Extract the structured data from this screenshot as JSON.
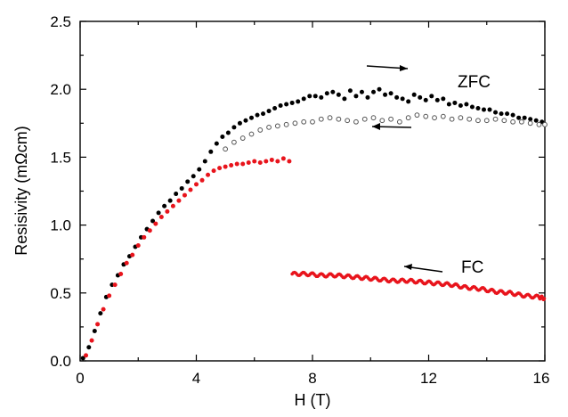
{
  "chart_data": {
    "type": "scatter",
    "title": "",
    "xlabel": "H (T)",
    "ylabel": "Resisivity (mΩcm)",
    "xlim": [
      0,
      16
    ],
    "ylim": [
      0,
      2.5
    ],
    "xticks": [
      "0",
      "4",
      "8",
      "12",
      "16"
    ],
    "yticks": [
      "0.0",
      "0.5",
      "1.0",
      "1.5",
      "2.0",
      "2.5"
    ],
    "grid": false,
    "annotations": [
      "ZFC",
      "FC"
    ],
    "colors": {
      "black": "#000000",
      "red": "#e8141c",
      "open": "#555555"
    },
    "series": [
      {
        "marker": "filled-black",
        "color": "#000000",
        "x": [
          0.1,
          0.3,
          0.5,
          0.7,
          0.9,
          1.1,
          1.3,
          1.5,
          1.7,
          1.9,
          2.1,
          2.3,
          2.5,
          2.7,
          2.9,
          3.1,
          3.3,
          3.5,
          3.7,
          3.9,
          4.1,
          4.3,
          4.5,
          4.7,
          4.9,
          5.1,
          5.3,
          5.5,
          5.7,
          5.9,
          6.1,
          6.3,
          6.5,
          6.7,
          6.9,
          7.1,
          7.3,
          7.5,
          7.7,
          7.9,
          8.1,
          8.3,
          8.5,
          8.7,
          8.9,
          9.1,
          9.3,
          9.5,
          9.7,
          9.9,
          10.1,
          10.3,
          10.5,
          10.7,
          10.9,
          11.1,
          11.3,
          11.5,
          11.7,
          11.9,
          12.1,
          12.3,
          12.5,
          12.7,
          12.9,
          13.1,
          13.3,
          13.5,
          13.7,
          13.9,
          14.1,
          14.3,
          14.5,
          14.7,
          14.9,
          15.1,
          15.3,
          15.5,
          15.7,
          15.9
        ],
        "y": [
          0.02,
          0.1,
          0.22,
          0.35,
          0.47,
          0.56,
          0.63,
          0.71,
          0.77,
          0.84,
          0.91,
          0.97,
          1.03,
          1.09,
          1.14,
          1.18,
          1.23,
          1.27,
          1.32,
          1.36,
          1.41,
          1.47,
          1.54,
          1.6,
          1.65,
          1.68,
          1.72,
          1.75,
          1.77,
          1.79,
          1.81,
          1.82,
          1.84,
          1.86,
          1.88,
          1.89,
          1.9,
          1.91,
          1.93,
          1.95,
          1.95,
          1.94,
          1.97,
          1.98,
          1.96,
          1.93,
          1.99,
          1.95,
          1.98,
          1.94,
          1.98,
          2.0,
          1.96,
          1.97,
          1.94,
          1.93,
          1.91,
          1.96,
          1.94,
          1.92,
          1.95,
          1.92,
          1.93,
          1.89,
          1.9,
          1.88,
          1.89,
          1.87,
          1.86,
          1.85,
          1.85,
          1.83,
          1.82,
          1.82,
          1.81,
          1.79,
          1.79,
          1.78,
          1.77,
          1.76
        ]
      },
      {
        "marker": "open-circle",
        "color": "#555555",
        "x": [
          5.0,
          5.3,
          5.6,
          5.9,
          6.2,
          6.5,
          6.8,
          7.1,
          7.4,
          7.7,
          8.0,
          8.3,
          8.6,
          8.9,
          9.2,
          9.5,
          9.8,
          10.1,
          10.4,
          10.7,
          11.0,
          11.3,
          11.6,
          11.9,
          12.2,
          12.5,
          12.8,
          13.1,
          13.4,
          13.7,
          14.0,
          14.3,
          14.6,
          14.9,
          15.2,
          15.5,
          15.8,
          16.0
        ],
        "y": [
          1.56,
          1.61,
          1.64,
          1.67,
          1.7,
          1.72,
          1.73,
          1.74,
          1.75,
          1.76,
          1.76,
          1.78,
          1.79,
          1.78,
          1.77,
          1.76,
          1.78,
          1.79,
          1.77,
          1.78,
          1.76,
          1.79,
          1.81,
          1.8,
          1.79,
          1.8,
          1.78,
          1.79,
          1.78,
          1.77,
          1.77,
          1.78,
          1.77,
          1.76,
          1.76,
          1.75,
          1.74,
          1.74
        ]
      },
      {
        "marker": "filled-red",
        "color": "#e8141c",
        "x": [
          0.2,
          0.4,
          0.6,
          0.8,
          1.0,
          1.2,
          1.4,
          1.6,
          1.8,
          2.0,
          2.2,
          2.4,
          2.6,
          2.8,
          3.0,
          3.2,
          3.4,
          3.6,
          3.8,
          4.0,
          4.2,
          4.4,
          4.6,
          4.8,
          5.0,
          5.2,
          5.4,
          5.6,
          5.8,
          6.0,
          6.2,
          6.4,
          6.6,
          6.8,
          7.0,
          7.2
        ],
        "y": [
          0.04,
          0.15,
          0.27,
          0.38,
          0.48,
          0.56,
          0.64,
          0.72,
          0.78,
          0.85,
          0.91,
          0.96,
          1.01,
          1.06,
          1.1,
          1.14,
          1.18,
          1.22,
          1.26,
          1.3,
          1.33,
          1.37,
          1.4,
          1.42,
          1.43,
          1.44,
          1.45,
          1.45,
          1.46,
          1.47,
          1.46,
          1.47,
          1.48,
          1.47,
          1.49,
          1.47
        ]
      },
      {
        "marker": "red-dense-line",
        "color": "#e8141c",
        "x": [
          7.3,
          7.8,
          8.3,
          8.8,
          9.3,
          9.8,
          10.3,
          10.8,
          11.3,
          11.8,
          12.3,
          12.8,
          13.3,
          13.8,
          14.3,
          14.8,
          15.3,
          15.8,
          16.0
        ],
        "y": [
          0.64,
          0.64,
          0.63,
          0.63,
          0.62,
          0.61,
          0.6,
          0.59,
          0.59,
          0.58,
          0.57,
          0.56,
          0.54,
          0.53,
          0.51,
          0.5,
          0.48,
          0.47,
          0.46
        ]
      }
    ]
  }
}
